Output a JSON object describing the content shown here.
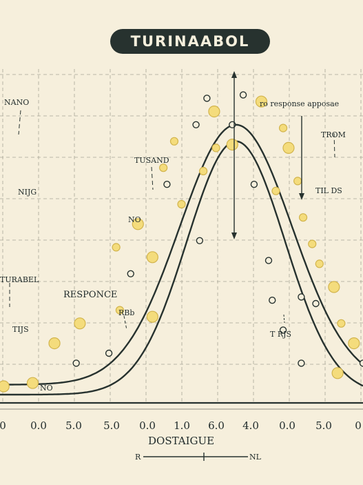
{
  "chart_data": {
    "type": "scatter",
    "title": "TURINAABOL",
    "xlabel": "DOSTAIGUE",
    "x_ticks": [
      "0",
      "0.0",
      "5.0",
      "5.0",
      "0.0",
      "1.0",
      "6.0",
      "4.0",
      "0.0",
      "5.0",
      "0"
    ],
    "xlim": [
      0,
      10
    ],
    "ylim": [
      0,
      10
    ],
    "grid": true,
    "legend": "none",
    "curves": [
      {
        "peak_x": 6.5,
        "peak_y": 8.4,
        "spread": 1.55,
        "baseline": 0.55
      },
      {
        "peak_x": 6.5,
        "peak_y": 7.9,
        "spread": 1.35,
        "baseline": 0.25
      }
    ],
    "points_filled": [
      {
        "x": 0.1,
        "y": 0.5,
        "size": "large"
      },
      {
        "x": 0.9,
        "y": 0.6,
        "size": "large"
      },
      {
        "x": 1.5,
        "y": 1.8,
        "size": "large"
      },
      {
        "x": 2.2,
        "y": 2.4,
        "size": "large"
      },
      {
        "x": 3.2,
        "y": 4.7,
        "size": "small"
      },
      {
        "x": 3.3,
        "y": 2.8,
        "size": "small"
      },
      {
        "x": 3.8,
        "y": 5.4,
        "size": "large"
      },
      {
        "x": 4.2,
        "y": 4.4,
        "size": "large"
      },
      {
        "x": 4.2,
        "y": 2.6,
        "size": "large"
      },
      {
        "x": 4.5,
        "y": 7.1,
        "size": "small"
      },
      {
        "x": 4.8,
        "y": 7.9,
        "size": "small"
      },
      {
        "x": 5.0,
        "y": 6.0,
        "size": "small"
      },
      {
        "x": 5.6,
        "y": 7.0,
        "size": "small"
      },
      {
        "x": 5.9,
        "y": 8.8,
        "size": "large"
      },
      {
        "x": 5.95,
        "y": 7.7,
        "size": "small"
      },
      {
        "x": 6.4,
        "y": 7.8,
        "size": "large"
      },
      {
        "x": 7.2,
        "y": 9.1,
        "size": "large"
      },
      {
        "x": 7.8,
        "y": 8.3,
        "size": "small"
      },
      {
        "x": 7.95,
        "y": 7.7,
        "size": "large"
      },
      {
        "x": 7.6,
        "y": 6.4,
        "size": "small"
      },
      {
        "x": 8.2,
        "y": 6.7,
        "size": "small"
      },
      {
        "x": 8.35,
        "y": 5.6,
        "size": "small"
      },
      {
        "x": 8.6,
        "y": 4.8,
        "size": "small"
      },
      {
        "x": 8.8,
        "y": 4.2,
        "size": "small"
      },
      {
        "x": 9.2,
        "y": 3.5,
        "size": "large"
      },
      {
        "x": 9.4,
        "y": 2.4,
        "size": "small"
      },
      {
        "x": 9.75,
        "y": 1.8,
        "size": "large"
      },
      {
        "x": 9.3,
        "y": 0.9,
        "size": "large"
      }
    ],
    "points_open": [
      {
        "x": 2.1,
        "y": 1.2
      },
      {
        "x": 3.0,
        "y": 1.5
      },
      {
        "x": 3.6,
        "y": 3.9
      },
      {
        "x": 4.6,
        "y": 6.6
      },
      {
        "x": 5.5,
        "y": 4.9
      },
      {
        "x": 5.4,
        "y": 8.4
      },
      {
        "x": 5.7,
        "y": 9.2
      },
      {
        "x": 6.4,
        "y": 8.4
      },
      {
        "x": 6.7,
        "y": 9.3
      },
      {
        "x": 7.0,
        "y": 6.6
      },
      {
        "x": 7.4,
        "y": 4.3
      },
      {
        "x": 7.5,
        "y": 3.1
      },
      {
        "x": 7.8,
        "y": 2.2
      },
      {
        "x": 8.3,
        "y": 3.2
      },
      {
        "x": 8.7,
        "y": 3.0
      },
      {
        "x": 8.3,
        "y": 1.2
      },
      {
        "x": 10.0,
        "y": 1.2
      }
    ],
    "annotations": [
      {
        "text": "NANO"
      },
      {
        "text": "NIJG"
      },
      {
        "text": "TURABEL"
      },
      {
        "text": "TIJS"
      },
      {
        "text": "NO"
      },
      {
        "text": "RESPONCE"
      },
      {
        "text": "RBb"
      },
      {
        "text": "TUSAND"
      },
      {
        "text": "NO"
      },
      {
        "text": "ro response apposae"
      },
      {
        "text": "TROM"
      },
      {
        "text": "TIL DS"
      },
      {
        "text": "T RJS"
      }
    ],
    "range_labels": {
      "left": "R",
      "right": "NL"
    }
  },
  "colors": {
    "background": "#f6efdc",
    "grid": "#a8a596",
    "ink": "#27322f",
    "point_fill": "#f4dc7c",
    "point_stroke": "#d2b44c"
  }
}
